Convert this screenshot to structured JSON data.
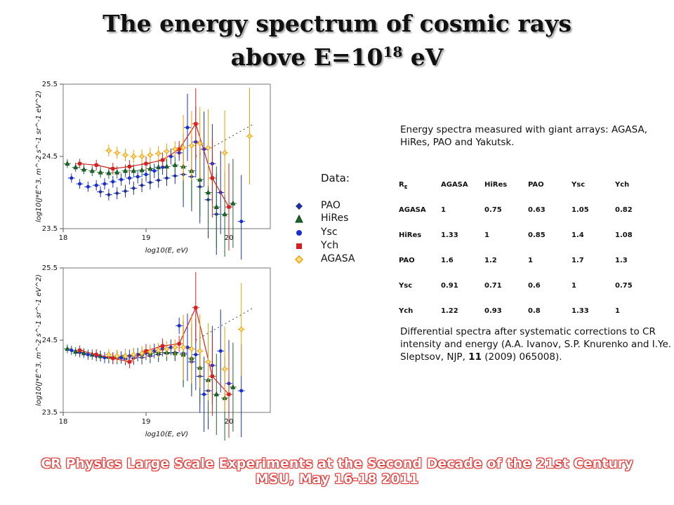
{
  "title_line1": "The energy spectrum of cosmic rays",
  "title_line2_prefix": "above E=10",
  "title_line2_exp": "18",
  "title_line2_suffix": " eV",
  "legend": {
    "heading": "Data:",
    "items": [
      {
        "label": "PAO",
        "color": "#1f2f9a",
        "marker": "diamond"
      },
      {
        "label": "HiRes",
        "color": "#1a6b2a",
        "marker": "triangle"
      },
      {
        "label": "Ysc",
        "color": "#1a2fd0",
        "marker": "circle"
      },
      {
        "label": "Ych",
        "color": "#d42020",
        "marker": "square"
      },
      {
        "label": "AGASA",
        "color": "#f0a000",
        "marker": "diamond-open"
      }
    ]
  },
  "description_top": "Energy spectra measured with giant arrays: AGASA, HiRes, PAO and Yakutsk.",
  "ratio_table": {
    "header_symbol": "R",
    "header_sub": "E",
    "columns": [
      "AGASA",
      "HiRes",
      "PAO",
      "Ysc",
      "Ych"
    ],
    "rows": [
      {
        "name": "AGASA",
        "values": [
          "1",
          "0.75",
          "0.63",
          "1.05",
          "0.82"
        ]
      },
      {
        "name": "HiRes",
        "values": [
          "1.33",
          "1",
          "0.85",
          "1.4",
          "1.08"
        ]
      },
      {
        "name": "PAO",
        "values": [
          "1.6",
          "1.2",
          "1",
          "1.7",
          "1.3"
        ]
      },
      {
        "name": "Ysc",
        "values": [
          "0.91",
          "0.71",
          "0.6",
          "1",
          "0.75"
        ]
      },
      {
        "name": "Ych",
        "values": [
          "1.22",
          "0.93",
          "0.8",
          "1.33",
          "1"
        ]
      }
    ]
  },
  "description_bottom_pre": "Differential spectra after systematic corrections to CR intensity and energy (A.A. Ivanov, S.P. Knurenko and I.Ye. Sleptsov, NJP, ",
  "description_bottom_bold": "11",
  "description_bottom_post": " (2009) 065008).",
  "footer_line1": "CR Physics Large Scale Experiments at the Second Decade of the 21st Century",
  "footer_line2": "MSU, May 16-18 2011",
  "chart_data": [
    {
      "type": "scatter",
      "title": "",
      "xlabel": "log10(E, eV)",
      "ylabel": "log10(J*E^3, m^-2 s^-1 sr^-1 eV^2)",
      "xlim": [
        18,
        20.5
      ],
      "ylim": [
        23.5,
        25.5
      ],
      "xticks": [
        "18",
        "19",
        "20"
      ],
      "yticks": [
        "23.5",
        "24.5",
        "25.5"
      ],
      "series": [
        {
          "name": "PAO",
          "color": "#1f2f9a",
          "marker": "diamond",
          "x": [
            18.45,
            18.55,
            18.65,
            18.75,
            18.85,
            18.95,
            19.05,
            19.15,
            19.25,
            19.35,
            19.45,
            19.55,
            19.65,
            19.75,
            19.85
          ],
          "y": [
            24.01,
            23.97,
            23.99,
            24.02,
            24.06,
            24.1,
            24.14,
            24.17,
            24.2,
            24.23,
            24.25,
            24.22,
            24.08,
            23.9,
            23.7
          ]
        },
        {
          "name": "HiRes",
          "color": "#1a6b2a",
          "marker": "triangle",
          "x": [
            18.05,
            18.15,
            18.25,
            18.35,
            18.45,
            18.55,
            18.65,
            18.75,
            18.85,
            18.95,
            19.05,
            19.15,
            19.25,
            19.35,
            19.45,
            19.55,
            19.65,
            19.75,
            19.85,
            19.95,
            20.05
          ],
          "y": [
            24.4,
            24.35,
            24.32,
            24.3,
            24.28,
            24.27,
            24.28,
            24.3,
            24.3,
            24.31,
            24.33,
            24.35,
            24.36,
            24.38,
            24.36,
            24.3,
            24.18,
            24.0,
            23.8,
            23.7,
            23.85
          ]
        },
        {
          "name": "Ysc",
          "color": "#1a2fd0",
          "marker": "circle",
          "x": [
            18.1,
            18.2,
            18.3,
            18.4,
            18.5,
            18.6,
            18.7,
            18.8,
            18.9,
            19.0,
            19.1,
            19.2,
            19.3,
            19.4,
            19.5,
            19.6,
            19.7,
            19.8,
            19.9,
            20.0,
            20.15
          ],
          "y": [
            24.2,
            24.12,
            24.08,
            24.1,
            24.12,
            24.15,
            24.18,
            24.2,
            24.22,
            24.25,
            24.3,
            24.35,
            24.5,
            24.55,
            24.9,
            24.7,
            24.6,
            24.4,
            24.0,
            23.8,
            23.6
          ]
        },
        {
          "name": "Ych",
          "color": "#d42020",
          "marker": "square",
          "x": [
            18.2,
            18.4,
            18.6,
            18.8,
            19.0,
            19.2,
            19.4,
            19.6,
            19.8,
            20.0
          ],
          "y": [
            24.4,
            24.38,
            24.33,
            24.36,
            24.4,
            24.45,
            24.6,
            24.95,
            24.2,
            23.8
          ]
        },
        {
          "name": "AGASA",
          "color": "#f0a000",
          "marker": "diamond-open",
          "x": [
            18.55,
            18.65,
            18.75,
            18.85,
            18.95,
            19.05,
            19.15,
            19.25,
            19.35,
            19.45,
            19.55,
            19.65,
            19.75,
            19.95,
            20.25
          ],
          "y": [
            24.58,
            24.55,
            24.52,
            24.5,
            24.5,
            24.52,
            24.54,
            24.57,
            24.6,
            24.62,
            24.65,
            24.68,
            24.62,
            24.55,
            24.78
          ]
        }
      ]
    },
    {
      "type": "scatter",
      "title": "",
      "xlabel": "log10(E, eV)",
      "ylabel": "log10(J*E^3, m^-2 s^-1 sr^-1 eV^2)",
      "xlim": [
        18,
        20.5
      ],
      "ylim": [
        23.5,
        25.5
      ],
      "xticks": [
        "18",
        "19",
        "20"
      ],
      "yticks": [
        "23.5",
        "24.5",
        "25.5"
      ],
      "series": [
        {
          "name": "PAO",
          "color": "#1f2f9a",
          "marker": "diamond",
          "x": [
            18.45,
            18.55,
            18.65,
            18.75,
            18.85,
            18.95,
            19.05,
            19.15,
            19.25,
            19.35,
            19.45,
            19.55,
            19.65,
            19.75
          ],
          "y": [
            24.28,
            24.26,
            24.25,
            24.24,
            24.25,
            24.26,
            24.28,
            24.3,
            24.32,
            24.33,
            24.32,
            24.2,
            24.0,
            23.8
          ]
        },
        {
          "name": "HiRes",
          "color": "#1a6b2a",
          "marker": "triangle",
          "x": [
            18.05,
            18.15,
            18.25,
            18.35,
            18.45,
            18.55,
            18.65,
            18.75,
            18.85,
            18.95,
            19.05,
            19.15,
            19.25,
            19.35,
            19.45,
            19.55,
            19.65,
            19.75,
            19.85,
            19.95,
            20.05
          ],
          "y": [
            24.38,
            24.34,
            24.32,
            24.3,
            24.28,
            24.27,
            24.28,
            24.29,
            24.3,
            24.31,
            24.32,
            24.33,
            24.33,
            24.32,
            24.3,
            24.25,
            24.12,
            23.95,
            23.75,
            23.7,
            23.85
          ]
        },
        {
          "name": "Ysc",
          "color": "#1a2fd0",
          "marker": "circle",
          "x": [
            18.1,
            18.2,
            18.3,
            18.4,
            18.5,
            18.6,
            18.7,
            18.8,
            18.9,
            19.0,
            19.1,
            19.2,
            19.3,
            19.4,
            19.5,
            19.6,
            19.7,
            19.8,
            19.9,
            20.0,
            20.15
          ],
          "y": [
            24.36,
            24.33,
            24.3,
            24.28,
            24.26,
            24.25,
            24.26,
            24.28,
            24.3,
            24.32,
            24.35,
            24.38,
            24.4,
            24.7,
            24.4,
            24.3,
            23.75,
            24.15,
            24.35,
            23.9,
            23.8
          ]
        },
        {
          "name": "Ych",
          "color": "#d42020",
          "marker": "square",
          "x": [
            18.2,
            18.4,
            18.6,
            18.8,
            19.0,
            19.2,
            19.4,
            19.6,
            19.8,
            20.0
          ],
          "y": [
            24.36,
            24.3,
            24.25,
            24.2,
            24.35,
            24.42,
            24.45,
            24.95,
            24.0,
            23.75
          ]
        },
        {
          "name": "AGASA",
          "color": "#f0a000",
          "marker": "diamond-open",
          "x": [
            18.55,
            18.65,
            18.75,
            18.85,
            18.95,
            19.05,
            19.15,
            19.25,
            19.35,
            19.45,
            19.55,
            19.65,
            19.75,
            19.95,
            20.15
          ],
          "y": [
            24.3,
            24.28,
            24.28,
            24.3,
            24.32,
            24.34,
            24.36,
            24.38,
            24.4,
            24.4,
            24.38,
            24.35,
            24.2,
            24.1,
            24.65
          ]
        }
      ]
    }
  ]
}
